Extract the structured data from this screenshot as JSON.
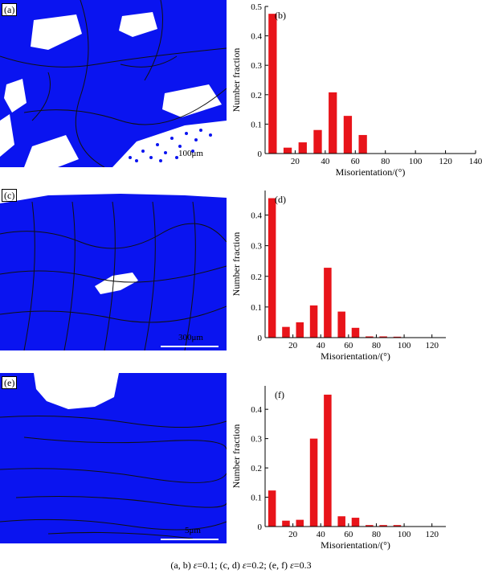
{
  "micrographs": [
    {
      "tag": "(a)",
      "scale": "100μm"
    },
    {
      "tag": "(c)",
      "scale": "300μm"
    },
    {
      "tag": "(e)",
      "scale": "5μm"
    }
  ],
  "caption": {
    "p1": "(a, b) ",
    "s1": "ε",
    "p2": "=0.1; (c, d) ",
    "s2": "ε",
    "p3": "=0.2; (e, f) ",
    "s3": "ε",
    "p4": "=0.3"
  },
  "colors": {
    "bar": "#e8141a",
    "grain": "#0a14f0"
  },
  "chart_data": [
    {
      "type": "bar",
      "panel": "(b)",
      "xlabel": "Misorientation/(°)",
      "ylabel": "Number fraction",
      "xlim": [
        0,
        140
      ],
      "ylim": [
        0,
        0.5
      ],
      "xticks": [
        20,
        40,
        60,
        80,
        100,
        120,
        140
      ],
      "yticks": [
        0,
        0.1,
        0.2,
        0.3,
        0.4,
        0.5
      ],
      "ytick_labels": [
        "0",
        "0.1",
        "0.2",
        "0.3",
        "0.4",
        "0.5"
      ],
      "x": [
        5,
        15,
        25,
        35,
        45,
        55,
        65
      ],
      "values": [
        0.475,
        0.02,
        0.038,
        0.08,
        0.208,
        0.128,
        0.063
      ]
    },
    {
      "type": "bar",
      "panel": "(d)",
      "xlabel": "Misorientation/(°)",
      "ylabel": "Number fraction",
      "xlim": [
        0,
        130
      ],
      "ylim": [
        0,
        0.48
      ],
      "xticks": [
        20,
        40,
        60,
        80,
        100,
        120
      ],
      "yticks": [
        0,
        0.1,
        0.2,
        0.3,
        0.4
      ],
      "ytick_labels": [
        "0",
        "0.1",
        "0.2",
        "0.3",
        "0.4"
      ],
      "x": [
        5,
        15,
        25,
        35,
        45,
        55,
        65,
        75,
        85,
        95
      ],
      "values": [
        0.455,
        0.035,
        0.05,
        0.105,
        0.228,
        0.085,
        0.032,
        0.004,
        0.004,
        0.003
      ]
    },
    {
      "type": "bar",
      "panel": "(f)",
      "xlabel": "Misorientation/(°)",
      "ylabel": "Number fraction",
      "xlim": [
        0,
        130
      ],
      "ylim": [
        0,
        0.48
      ],
      "xticks": [
        20,
        40,
        60,
        80,
        100,
        120
      ],
      "yticks": [
        0,
        0.1,
        0.2,
        0.3,
        0.4
      ],
      "ytick_labels": [
        "0",
        "0.1",
        "0.2",
        "0.3",
        "0.4"
      ],
      "x": [
        5,
        15,
        25,
        35,
        45,
        55,
        65,
        75,
        85,
        95
      ],
      "values": [
        0.123,
        0.02,
        0.023,
        0.3,
        0.45,
        0.035,
        0.03,
        0.005,
        0.005,
        0.005
      ]
    }
  ]
}
